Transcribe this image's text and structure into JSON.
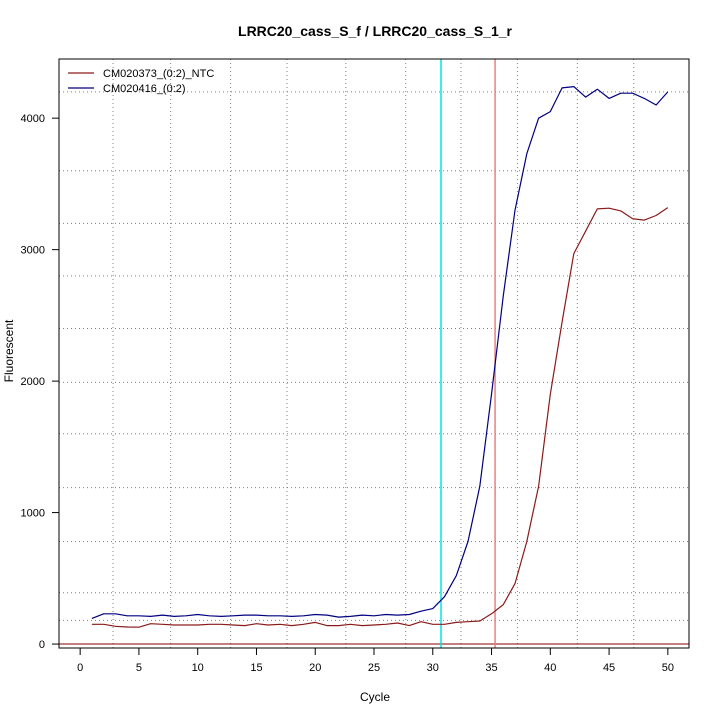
{
  "chart_data": {
    "type": "line",
    "title": "LRRC20_cass_S_f / LRRC20_cass_S_1_r",
    "xlabel": "Cycle",
    "ylabel": "Fluorescent",
    "xlim": [
      -1.8,
      51.8
    ],
    "ylim": [
      -30,
      4450
    ],
    "x_ticks": [
      0,
      5,
      10,
      15,
      20,
      25,
      30,
      35,
      40,
      45,
      50
    ],
    "y_ticks": [
      0,
      1000,
      2000,
      3000,
      4000
    ],
    "grid": "dotted",
    "grid_x": [
      2.8,
      7.7,
      12.8,
      17.6,
      22.6,
      27.7,
      32.4,
      37.2,
      42.3,
      47.1
    ],
    "grid_y": [
      180,
      390,
      780,
      1190,
      1600,
      1990,
      2400,
      2800,
      3200,
      3600,
      4200
    ],
    "legend_position": "top-left",
    "baseline": {
      "y": 0,
      "color": "#8b0000"
    },
    "thresholds_x": [
      {
        "x": 30.7,
        "color": "#00e5e5"
      },
      {
        "x": 35.3,
        "color": "#e98080"
      }
    ],
    "series": [
      {
        "name": "CM020373_(0:2)_NTC",
        "color": "#8b1a1a",
        "x": [
          1,
          2,
          3,
          4,
          5,
          6,
          7,
          8,
          9,
          10,
          11,
          12,
          13,
          14,
          15,
          16,
          17,
          18,
          19,
          20,
          21,
          22,
          23,
          24,
          25,
          26,
          27,
          28,
          29,
          30,
          31,
          32,
          33,
          34,
          35,
          36,
          37,
          38,
          39,
          40,
          41,
          42,
          43,
          44,
          45,
          46,
          47,
          48,
          49,
          50
        ],
        "values": [
          150,
          150,
          135,
          130,
          128,
          155,
          150,
          145,
          145,
          145,
          150,
          150,
          145,
          140,
          155,
          145,
          150,
          140,
          150,
          165,
          140,
          140,
          150,
          140,
          145,
          150,
          160,
          140,
          170,
          150,
          150,
          165,
          170,
          175,
          230,
          300,
          460,
          780,
          1200,
          1900,
          2450,
          2970,
          3140,
          3310,
          3315,
          3295,
          3235,
          3225,
          3260,
          3320
        ]
      },
      {
        "name": "CM020416_(0:2)",
        "color": "#000080",
        "x": [
          1,
          2,
          3,
          4,
          5,
          6,
          7,
          8,
          9,
          10,
          11,
          12,
          13,
          14,
          15,
          16,
          17,
          18,
          19,
          20,
          21,
          22,
          23,
          24,
          25,
          26,
          27,
          28,
          29,
          30,
          31,
          32,
          33,
          34,
          35,
          36,
          37,
          38,
          39,
          40,
          41,
          42,
          43,
          44,
          45,
          46,
          47,
          48,
          49,
          50
        ],
        "values": [
          195,
          230,
          230,
          215,
          215,
          210,
          220,
          210,
          215,
          225,
          215,
          210,
          215,
          220,
          220,
          215,
          215,
          210,
          215,
          225,
          220,
          205,
          210,
          220,
          215,
          225,
          220,
          225,
          250,
          270,
          360,
          520,
          780,
          1200,
          1900,
          2650,
          3300,
          3730,
          4000,
          4050,
          4230,
          4240,
          4160,
          4220,
          4150,
          4190,
          4190,
          4150,
          4100,
          4200
        ]
      }
    ]
  }
}
